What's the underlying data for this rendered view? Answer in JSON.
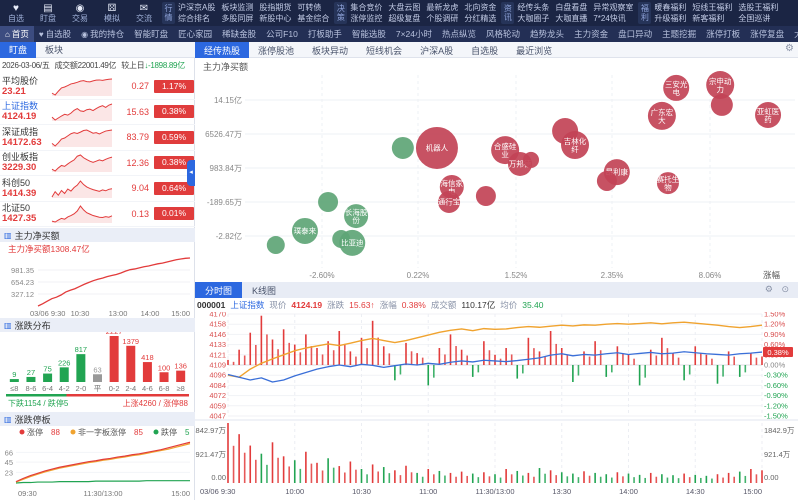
{
  "colors": {
    "red": "#e23b3b",
    "green": "#21a452",
    "orange": "#f0a32f",
    "blue": "#2c68e0",
    "bubble_red": "#c24356",
    "bubble_green": "#5ea576",
    "badge_red": "#e03c3c"
  },
  "topbar": {
    "quick_items": [
      {
        "icon": "heart-icon",
        "glyph": "♥",
        "label": "自选"
      },
      {
        "icon": "monitor-icon",
        "glyph": "▤",
        "label": "盯盘"
      },
      {
        "icon": "trade-icon",
        "glyph": "◉",
        "label": "交易"
      },
      {
        "icon": "simulate-icon",
        "glyph": "⚄",
        "label": "模拟"
      },
      {
        "icon": "chat-icon",
        "glyph": "✉",
        "label": "交流"
      }
    ],
    "groups": [
      {
        "label": "行情",
        "columns": [
          [
            "沪深京A股",
            "综合排名"
          ],
          [
            "板块监测",
            "多股同屏"
          ],
          [
            "股指期货",
            "新股中心"
          ],
          [
            "可转债",
            "基金综合"
          ]
        ]
      },
      {
        "label": "决策",
        "columns": [
          [
            "集合竞价",
            "涨停监控"
          ],
          [
            "大盘云图",
            "超级复盘"
          ],
          [
            "最新龙虎",
            "个股调研"
          ],
          [
            "北向资金",
            "分红精选"
          ]
        ]
      },
      {
        "label": "资讯",
        "columns": [
          [
            "经传头条",
            "大咖圈子"
          ],
          [
            "白盘看盘",
            "大咖直播"
          ],
          [
            "异常观察室",
            "7*24快讯"
          ]
        ]
      },
      {
        "label": "福利",
        "columns": [
          [
            "暖春福利",
            "升级福利"
          ],
          [
            "短线王福利",
            "新客福利"
          ],
          [
            "选股王福利",
            "全国巡讲"
          ]
        ]
      }
    ]
  },
  "nav": {
    "active": "首页",
    "tabs": [
      "首页",
      "自选股",
      "我的持仓",
      "智能盯盘",
      "匠心家园",
      "稀缺金股",
      "公司F10",
      "打板助手",
      "智能选股",
      "7×24小时",
      "热点纵览",
      "风格轮动",
      "趋势龙头",
      "主力资金",
      "盘口异动",
      "主题挖掘",
      "涨停打板",
      "涨停复盘",
      "大盘状态"
    ]
  },
  "subnav": {
    "left_tabs": [
      "盯盘",
      "板块"
    ],
    "active_left": "盯盘",
    "right_tabs": [
      "经传热股",
      "涨停股池",
      "板块异动",
      "短线机会",
      "沪深A股",
      "自选股",
      "最近浏览"
    ],
    "active_right": "经传热股",
    "gear": "⚙"
  },
  "sidebar": {
    "date": "2026-03-06/五",
    "turnover": "成交额22001.49亿",
    "vs_label": "较上日",
    "vs_arrow": "↓",
    "vs_value": "-1898.89亿",
    "indices": [
      {
        "name": "平均股价",
        "value": "23.21",
        "chg": "0.27",
        "pct": "1.17%"
      },
      {
        "name": "上证指数",
        "value": "4124.19",
        "chg": "15.63",
        "pct": "0.38%"
      },
      {
        "name": "深证成指",
        "value": "14172.63",
        "chg": "83.79",
        "pct": "0.59%"
      },
      {
        "name": "创业板指",
        "value": "3229.30",
        "chg": "12.36",
        "pct": "0.38%"
      },
      {
        "name": "科创50",
        "value": "1414.39",
        "chg": "9.04",
        "pct": "0.64%"
      },
      {
        "name": "北证50",
        "value": "1427.35",
        "chg": "0.13",
        "pct": "0.01%"
      }
    ],
    "panel_titles": {
      "net_inflow": "主力净买额",
      "distribution": "涨跌分布",
      "limit_board": "涨跌停板"
    }
  },
  "intraday": {
    "tabs": [
      "分时图",
      "K线图"
    ],
    "active_tab": "分时图",
    "code": "000001",
    "name": "上证指数",
    "price_label": "现价",
    "price": "4124.19",
    "chg_label": "涨跌",
    "chg": "15.63↑",
    "pct_label": "涨幅",
    "pct": "0.38%",
    "amount_label": "成交额",
    "amount": "110.17亿",
    "avg_label": "均价",
    "avg": "35.40",
    "gears": "⚙ ⊙",
    "marker": "0.38%"
  },
  "chart_data": [
    {
      "id": "sidebar_sparklines",
      "type": "line",
      "series": [
        {
          "name": "平均股价",
          "values": [
            18,
            10,
            26,
            40,
            44,
            50,
            57,
            60,
            64,
            69,
            71,
            67,
            66,
            70,
            73,
            74,
            72,
            75,
            77,
            78
          ]
        },
        {
          "name": "上证指数",
          "values": [
            30,
            20,
            27,
            34,
            40,
            37,
            44,
            54,
            60,
            52,
            50,
            56,
            58,
            53,
            60,
            66,
            70,
            64,
            72,
            76
          ]
        },
        {
          "name": "深证成指",
          "values": [
            22,
            12,
            24,
            38,
            42,
            50,
            58,
            62,
            59,
            64,
            70,
            72,
            66,
            60,
            62,
            57,
            63,
            68,
            70,
            72
          ]
        },
        {
          "name": "创业板指",
          "values": [
            28,
            22,
            32,
            40,
            37,
            45,
            52,
            58,
            70,
            74,
            65,
            59,
            54,
            50,
            54,
            58,
            55,
            60,
            64,
            67
          ]
        },
        {
          "name": "科创50",
          "values": [
            18,
            36,
            24,
            40,
            30,
            45,
            38,
            50,
            58,
            72,
            60,
            52,
            47,
            43,
            40,
            37,
            42,
            39,
            44,
            46
          ]
        },
        {
          "name": "北证50",
          "values": [
            20,
            17,
            24,
            30,
            27,
            35,
            40,
            46,
            56,
            74,
            60,
            50,
            45,
            40,
            37,
            34,
            33,
            36,
            34,
            39
          ]
        }
      ]
    },
    {
      "id": "main_net_inflow",
      "type": "area",
      "title": "主力净买额",
      "inline_label": "主力净买额1308.47亿",
      "unit": "亿",
      "ymax": 1400,
      "yticks": [
        "981.35",
        "654.23",
        "327.12"
      ],
      "ytick_values": [
        981.35,
        654.23,
        327.12
      ],
      "xticks": [
        "03/06 9:30",
        "10:30",
        "13:00",
        "14:00",
        "15:00"
      ],
      "values": [
        0,
        60,
        130,
        200,
        240,
        300,
        380,
        430,
        470,
        530,
        590,
        640,
        690,
        730,
        760,
        800,
        830,
        860,
        900,
        950,
        990,
        1010,
        1040,
        1070,
        1090,
        1120,
        1150,
        1170,
        1200,
        1230,
        1260,
        1280,
        1300,
        1308
      ]
    },
    {
      "id": "advance_decline",
      "type": "bar",
      "title": "涨跌分布",
      "categories": [
        "≤8",
        "8-6",
        "6-4",
        "4-2",
        "2-0",
        "平",
        "0-2",
        "2-4",
        "4-6",
        "6-8",
        "≥8"
      ],
      "values": [
        9,
        27,
        75,
        226,
        817,
        63,
        2227,
        1379,
        418,
        100,
        136
      ],
      "bar_colors": [
        "green",
        "green",
        "green",
        "green",
        "green",
        "gray",
        "red",
        "red",
        "red",
        "red",
        "red"
      ],
      "down_summary": "下跌1154 / 跌停5",
      "up_summary": "上涨4260 / 涨停88",
      "down_total": 1154,
      "up_total": 4260
    },
    {
      "id": "limit_board",
      "type": "line",
      "title": "涨跌停板",
      "ymax": 95,
      "yticks": [
        66,
        45,
        23
      ],
      "xticks": [
        "09:30",
        "11:30/13:00",
        "15:00"
      ],
      "series": [
        {
          "name": "涨停",
          "count": "88",
          "color": "#e23b3b",
          "values": [
            3,
            10,
            16,
            21,
            26,
            30,
            34,
            37,
            40,
            43,
            46,
            48,
            51,
            53,
            56,
            58,
            61,
            63,
            66,
            69,
            72,
            76,
            80,
            84,
            88
          ]
        },
        {
          "name": "非一字板涨停",
          "count": "85",
          "color": "#f0a32f",
          "values": [
            2,
            8,
            14,
            19,
            24,
            28,
            32,
            35,
            38,
            41,
            44,
            46,
            49,
            51,
            54,
            56,
            59,
            61,
            64,
            67,
            70,
            73,
            77,
            81,
            85
          ]
        },
        {
          "name": "跌停",
          "count": "5",
          "color": "#21a452",
          "values": [
            0,
            1,
            1,
            2,
            2,
            2,
            3,
            3,
            3,
            3,
            3,
            4,
            4,
            4,
            4,
            4,
            4,
            4,
            5,
            5,
            5,
            5,
            5,
            5,
            5
          ]
        }
      ]
    },
    {
      "id": "sector_scatter",
      "type": "scatter",
      "ylabel": "主力净买额",
      "xlabel": "涨幅",
      "yticks": [
        "14.15亿",
        "6526.47万",
        "983.84万",
        "-189.65万",
        "-2.82亿"
      ],
      "xticks": [
        "-2.60%",
        "0.22%",
        "1.52%",
        "2.35%",
        "8.06%"
      ],
      "bubbles": [
        {
          "label": "",
          "color": "green",
          "cx": 0.287,
          "cy": 0.378,
          "r": 11
        },
        {
          "label": "",
          "color": "green",
          "cx": 0.151,
          "cy": 0.658,
          "r": 10
        },
        {
          "label": "璞泰来",
          "color": "green",
          "cx": 0.109,
          "cy": 0.808,
          "r": 13
        },
        {
          "label": "长海股份",
          "color": "green",
          "cx": 0.202,
          "cy": 0.731,
          "r": 12
        },
        {
          "label": "",
          "color": "green",
          "cx": 0.175,
          "cy": 0.85,
          "r": 9
        },
        {
          "label": "比亚迪",
          "color": "green",
          "cx": 0.195,
          "cy": 0.87,
          "r": 13
        },
        {
          "label": "",
          "color": "green",
          "cx": 0.056,
          "cy": 0.881,
          "r": 9
        },
        {
          "label": "机器人",
          "color": "red",
          "cx": 0.349,
          "cy": 0.378,
          "r": 21
        },
        {
          "label": "合盛硅业",
          "color": "red",
          "cx": 0.473,
          "cy": 0.389,
          "r": 14
        },
        {
          "label": "万邦德",
          "color": "red",
          "cx": 0.5,
          "cy": 0.461,
          "r": 12
        },
        {
          "label": "海信家电",
          "color": "red",
          "cx": 0.376,
          "cy": 0.58,
          "r": 12
        },
        {
          "label": "通行宝",
          "color": "red",
          "cx": 0.371,
          "cy": 0.658,
          "r": 11
        },
        {
          "label": "",
          "color": "red",
          "cx": 0.438,
          "cy": 0.627,
          "r": 10
        },
        {
          "label": "三安光电",
          "color": "red",
          "cx": 0.784,
          "cy": 0.067,
          "r": 13
        },
        {
          "label": "宗申动力",
          "color": "red",
          "cx": 0.864,
          "cy": 0.052,
          "r": 14
        },
        {
          "label": "",
          "color": "red",
          "cx": 0.867,
          "cy": 0.155,
          "r": 11
        },
        {
          "label": "亚虹医药",
          "color": "red",
          "cx": 0.951,
          "cy": 0.207,
          "r": 13
        },
        {
          "label": "广东宏大",
          "color": "red",
          "cx": 0.758,
          "cy": 0.212,
          "r": 14
        },
        {
          "label": "",
          "color": "red",
          "cx": 0.582,
          "cy": 0.29,
          "r": 13
        },
        {
          "label": "吉林化纤",
          "color": "red",
          "cx": 0.6,
          "cy": 0.363,
          "r": 14
        },
        {
          "label": "",
          "color": "red",
          "cx": 0.52,
          "cy": 0.44,
          "r": 8
        },
        {
          "label": "昂利康",
          "color": "red",
          "cx": 0.676,
          "cy": 0.503,
          "r": 13
        },
        {
          "label": "",
          "color": "red",
          "cx": 0.658,
          "cy": 0.549,
          "r": 10
        },
        {
          "label": "赛托生物",
          "color": "red",
          "cx": 0.769,
          "cy": 0.56,
          "r": 11
        }
      ]
    },
    {
      "id": "intraday_chart",
      "type": "line+bar",
      "pct_range": 1.5,
      "vol_max": 1843,
      "price_axis_left": [
        "4170",
        "4158",
        "4146",
        "4133",
        "4121",
        "4109",
        "4096",
        "4084",
        "4072",
        "4059",
        "4047"
      ],
      "price_axis_right": [
        "1.50%",
        "1.20%",
        "0.90%",
        "0.60%",
        "0.30%",
        "0.00%",
        "-0.30%",
        "-0.60%",
        "-0.90%",
        "-1.20%",
        "-1.50%"
      ],
      "vol_axis_left": [
        "1842.97万",
        "921.47万",
        "0.00"
      ],
      "vol_axis_right": [
        "1842.9万",
        "921.4万",
        "0.00"
      ],
      "xticks": [
        "03/06 9:30",
        "10:00",
        "10:30",
        "11:00",
        "11:30/13:00",
        "13:30",
        "14:00",
        "14:30",
        "15:00"
      ],
      "avg_price_line": [
        -0.3,
        -0.36,
        -0.12,
        0.05,
        0.18,
        0.3,
        0.42,
        0.5,
        0.56,
        0.62,
        0.57,
        0.64,
        0.72,
        0.78,
        0.72,
        0.66,
        0.72,
        0.8,
        0.88,
        0.96,
        1.02,
        1.06,
        1.01,
        1.07,
        1.05,
        1.06,
        1.1,
        1.13,
        1.11,
        1.14,
        1.17,
        1.15,
        1.18,
        1.17,
        1.2,
        1.22,
        1.2,
        1.22,
        1.24,
        1.21,
        1.24,
        1.26,
        1.23,
        1.2,
        1.17,
        1.13,
        1.1,
        1.13,
        1.17
      ],
      "index_line": [
        -0.28,
        -0.36,
        -0.44,
        -0.38,
        -0.5,
        -0.44,
        -0.32,
        -0.22,
        -0.12,
        -0.05,
        0.0,
        -0.05,
        0.02,
        -0.01,
        -0.07,
        -0.02,
        0.03,
        0.0,
        0.05,
        0.02,
        0.08,
        0.12,
        0.09,
        0.14,
        0.12,
        0.1,
        0.13,
        0.17,
        0.21,
        0.29,
        0.33,
        0.27,
        0.31,
        0.29,
        0.33,
        0.36,
        0.31,
        0.34,
        0.37,
        0.33,
        0.35,
        0.39,
        0.36,
        0.33,
        0.31,
        0.29,
        0.33,
        0.35,
        0.38
      ],
      "flow_bars": [
        0.15,
        0.45,
        0.95,
        1.45,
        0.75,
        1.05,
        0.6,
        0.9,
        0.5,
        0.7,
        1.0,
        0.4,
        0.8,
        1.3,
        0.55,
        -0.45,
        0.65,
        0.35,
        -0.6,
        0.5,
        0.9,
        0.45,
        -0.35,
        0.7,
        0.3,
        0.5,
        -0.4,
        0.8,
        0.4,
        1.0,
        0.5,
        -0.5,
        0.4,
        0.7,
        -0.35,
        0.55,
        0.3,
        -0.6,
        0.45,
        0.8,
        0.35,
        -0.45,
        0.55,
        0.3,
        -0.55,
        0.4,
        -0.35,
        0.35,
        0.25
      ],
      "volume_bars": [
        1843,
        1500,
        1150,
        -900,
        1250,
        820,
        -700,
        960,
        620,
        -760,
        520,
        660,
        -430,
        570,
        -490,
        390,
        530,
        -310,
        430,
        -370,
        310,
        350,
        -290,
        330,
        -270,
        430,
        -370,
        310,
        -460,
        390,
        -330,
        -290,
        360,
        -310,
        -270,
        330,
        -290,
        -250,
        310,
        -270,
        -240,
        290,
        -250,
        -220,
        270,
        310,
        -350,
        430,
        390
      ]
    }
  ]
}
